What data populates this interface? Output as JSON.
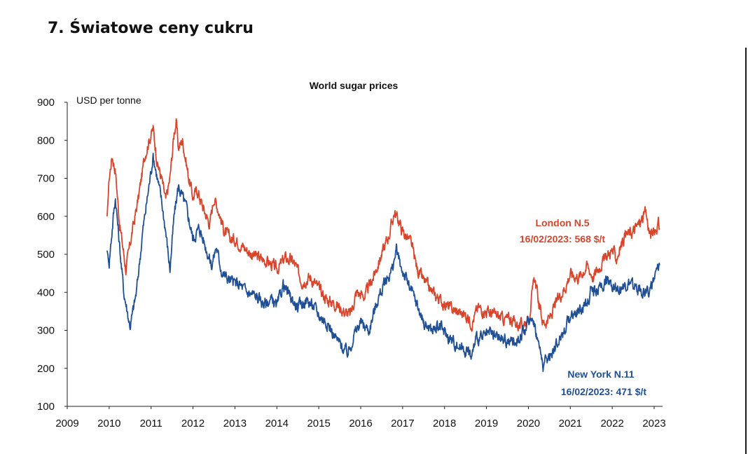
{
  "page": {
    "heading": "7. Światowe ceny cukru"
  },
  "colors": {
    "london": "#d9452b",
    "newyork": "#1f4f95",
    "axis": "#222222"
  },
  "chart_data": {
    "type": "line",
    "title": "World sugar prices",
    "unit_label": "USD per tonne",
    "xlabel": "",
    "ylabel": "USD per tonne",
    "ylim": [
      100,
      900
    ],
    "xlim": [
      2009,
      2023.2
    ],
    "y_ticks": [
      "900",
      "800",
      "700",
      "600",
      "500",
      "400",
      "300",
      "200",
      "100"
    ],
    "x_ticks": [
      "2009",
      "2010",
      "2011",
      "2012",
      "2013",
      "2014",
      "2015",
      "2016",
      "2017",
      "2018",
      "2019",
      "2020",
      "2021",
      "2022",
      "2023"
    ],
    "grid": false,
    "series": [
      {
        "name": "London N.5",
        "color": "#d9452b",
        "annotation": {
          "name": "London N.5",
          "value": "16/02/2023: 568 $/t"
        },
        "points": [
          [
            2009.95,
            600
          ],
          [
            2010.0,
            700
          ],
          [
            2010.07,
            760
          ],
          [
            2010.15,
            720
          ],
          [
            2010.25,
            580
          ],
          [
            2010.4,
            460
          ],
          [
            2010.55,
            560
          ],
          [
            2010.7,
            650
          ],
          [
            2010.85,
            760
          ],
          [
            2010.95,
            800
          ],
          [
            2011.05,
            830
          ],
          [
            2011.15,
            740
          ],
          [
            2011.25,
            700
          ],
          [
            2011.35,
            640
          ],
          [
            2011.45,
            700
          ],
          [
            2011.55,
            820
          ],
          [
            2011.6,
            850
          ],
          [
            2011.65,
            780
          ],
          [
            2011.75,
            800
          ],
          [
            2011.9,
            700
          ],
          [
            2012.0,
            650
          ],
          [
            2012.1,
            670
          ],
          [
            2012.25,
            620
          ],
          [
            2012.4,
            580
          ],
          [
            2012.5,
            650
          ],
          [
            2012.6,
            620
          ],
          [
            2012.75,
            560
          ],
          [
            2012.9,
            540
          ],
          [
            2013.0,
            540
          ],
          [
            2013.2,
            520
          ],
          [
            2013.4,
            500
          ],
          [
            2013.6,
            490
          ],
          [
            2013.8,
            480
          ],
          [
            2014.0,
            460
          ],
          [
            2014.2,
            490
          ],
          [
            2014.4,
            480
          ],
          [
            2014.6,
            430
          ],
          [
            2014.8,
            440
          ],
          [
            2015.0,
            410
          ],
          [
            2015.2,
            380
          ],
          [
            2015.4,
            370
          ],
          [
            2015.6,
            350
          ],
          [
            2015.75,
            340
          ],
          [
            2015.9,
            400
          ],
          [
            2016.1,
            390
          ],
          [
            2016.3,
            440
          ],
          [
            2016.5,
            500
          ],
          [
            2016.7,
            560
          ],
          [
            2016.8,
            610
          ],
          [
            2016.9,
            590
          ],
          [
            2017.0,
            560
          ],
          [
            2017.2,
            530
          ],
          [
            2017.35,
            460
          ],
          [
            2017.5,
            430
          ],
          [
            2017.7,
            400
          ],
          [
            2017.9,
            380
          ],
          [
            2018.1,
            360
          ],
          [
            2018.3,
            350
          ],
          [
            2018.5,
            340
          ],
          [
            2018.65,
            320
          ],
          [
            2018.8,
            360
          ],
          [
            2019.0,
            350
          ],
          [
            2019.2,
            340
          ],
          [
            2019.4,
            330
          ],
          [
            2019.6,
            330
          ],
          [
            2019.8,
            310
          ],
          [
            2020.0,
            330
          ],
          [
            2020.1,
            400
          ],
          [
            2020.15,
            440
          ],
          [
            2020.25,
            370
          ],
          [
            2020.35,
            320
          ],
          [
            2020.5,
            330
          ],
          [
            2020.7,
            380
          ],
          [
            2020.9,
            420
          ],
          [
            2021.0,
            450
          ],
          [
            2021.2,
            440
          ],
          [
            2021.4,
            470
          ],
          [
            2021.55,
            440
          ],
          [
            2021.7,
            470
          ],
          [
            2021.9,
            500
          ],
          [
            2022.0,
            510
          ],
          [
            2022.1,
            490
          ],
          [
            2022.3,
            550
          ],
          [
            2022.5,
            560
          ],
          [
            2022.7,
            590
          ],
          [
            2022.8,
            610
          ],
          [
            2022.9,
            550
          ],
          [
            2023.0,
            560
          ],
          [
            2023.1,
            580
          ],
          [
            2023.13,
            568
          ]
        ]
      },
      {
        "name": "New York N.11",
        "color": "#1f4f95",
        "annotation": {
          "name": "New York N.11",
          "value": "16/02/2023: 471 $/t"
        },
        "points": [
          [
            2009.95,
            510
          ],
          [
            2010.0,
            480
          ],
          [
            2010.1,
            600
          ],
          [
            2010.15,
            650
          ],
          [
            2010.25,
            520
          ],
          [
            2010.35,
            400
          ],
          [
            2010.5,
            310
          ],
          [
            2010.65,
            400
          ],
          [
            2010.8,
            560
          ],
          [
            2010.95,
            680
          ],
          [
            2011.05,
            760
          ],
          [
            2011.15,
            700
          ],
          [
            2011.25,
            640
          ],
          [
            2011.35,
            560
          ],
          [
            2011.45,
            460
          ],
          [
            2011.55,
            600
          ],
          [
            2011.65,
            680
          ],
          [
            2011.75,
            650
          ],
          [
            2011.85,
            620
          ],
          [
            2012.0,
            540
          ],
          [
            2012.15,
            570
          ],
          [
            2012.3,
            520
          ],
          [
            2012.45,
            470
          ],
          [
            2012.55,
            520
          ],
          [
            2012.7,
            450
          ],
          [
            2012.9,
            430
          ],
          [
            2013.1,
            420
          ],
          [
            2013.3,
            400
          ],
          [
            2013.5,
            390
          ],
          [
            2013.7,
            370
          ],
          [
            2013.9,
            380
          ],
          [
            2014.0,
            360
          ],
          [
            2014.15,
            420
          ],
          [
            2014.3,
            390
          ],
          [
            2014.5,
            360
          ],
          [
            2014.7,
            380
          ],
          [
            2014.9,
            360
          ],
          [
            2015.0,
            340
          ],
          [
            2015.2,
            320
          ],
          [
            2015.4,
            280
          ],
          [
            2015.6,
            250
          ],
          [
            2015.7,
            240
          ],
          [
            2015.85,
            290
          ],
          [
            2016.0,
            320
          ],
          [
            2016.2,
            300
          ],
          [
            2016.4,
            380
          ],
          [
            2016.6,
            430
          ],
          [
            2016.75,
            460
          ],
          [
            2016.85,
            510
          ],
          [
            2016.95,
            470
          ],
          [
            2017.1,
            430
          ],
          [
            2017.3,
            380
          ],
          [
            2017.5,
            320
          ],
          [
            2017.7,
            300
          ],
          [
            2017.9,
            310
          ],
          [
            2018.1,
            280
          ],
          [
            2018.3,
            260
          ],
          [
            2018.5,
            250
          ],
          [
            2018.65,
            230
          ],
          [
            2018.75,
            280
          ],
          [
            2018.9,
            280
          ],
          [
            2019.1,
            290
          ],
          [
            2019.3,
            280
          ],
          [
            2019.5,
            270
          ],
          [
            2019.7,
            270
          ],
          [
            2019.9,
            300
          ],
          [
            2020.05,
            330
          ],
          [
            2020.1,
            340
          ],
          [
            2020.25,
            260
          ],
          [
            2020.35,
            210
          ],
          [
            2020.5,
            230
          ],
          [
            2020.7,
            270
          ],
          [
            2020.9,
            310
          ],
          [
            2021.0,
            340
          ],
          [
            2021.2,
            350
          ],
          [
            2021.4,
            370
          ],
          [
            2021.5,
            410
          ],
          [
            2021.6,
            400
          ],
          [
            2021.75,
            420
          ],
          [
            2021.9,
            430
          ],
          [
            2022.0,
            420
          ],
          [
            2022.2,
            410
          ],
          [
            2022.4,
            420
          ],
          [
            2022.6,
            410
          ],
          [
            2022.8,
            400
          ],
          [
            2022.9,
            410
          ],
          [
            2023.0,
            430
          ],
          [
            2023.1,
            460
          ],
          [
            2023.13,
            471
          ]
        ]
      }
    ]
  }
}
